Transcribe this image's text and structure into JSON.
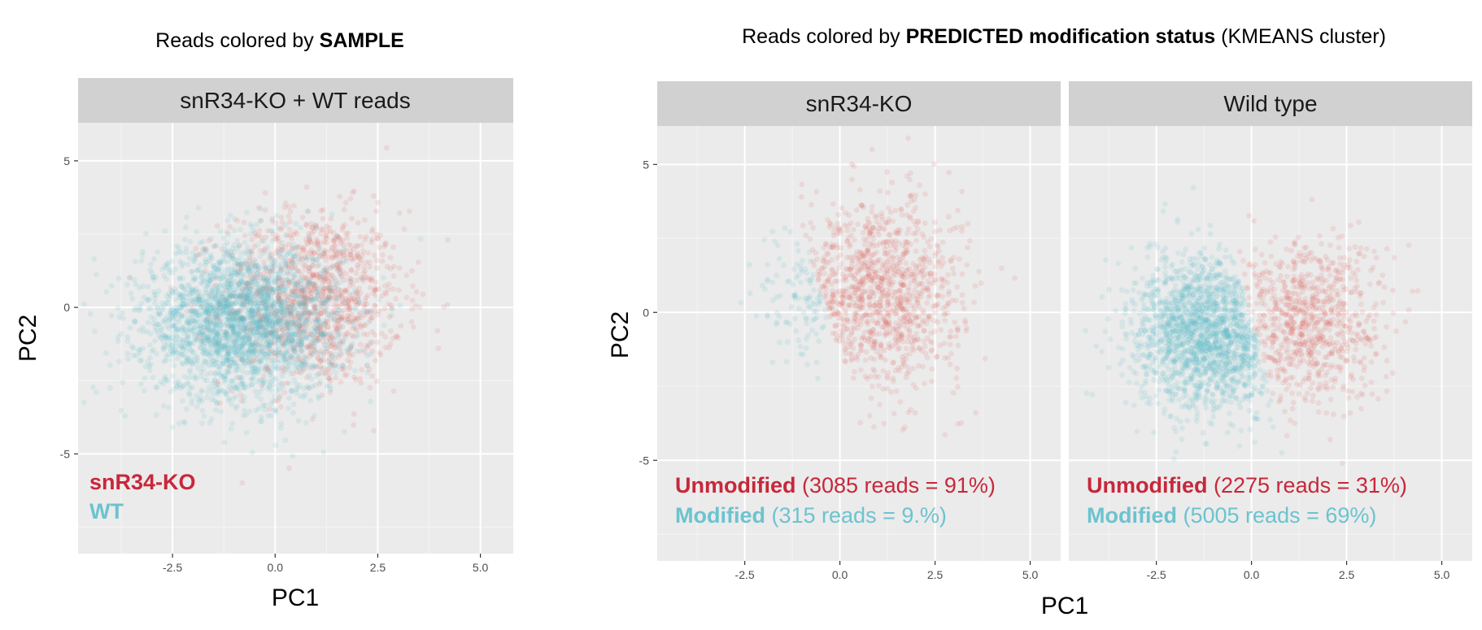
{
  "colors": {
    "unmodified": "#e06c63",
    "modified": "#5fbfc9",
    "label_red": "#c8273a",
    "label_teal": "#6cc3cf",
    "panel_bg": "#ebebeb",
    "strip_bg": "#d1d1d1"
  },
  "left_plot": {
    "title_prefix": "Reads colored by ",
    "title_bold": "SAMPLE",
    "strip": "snR34-KO + WT reads",
    "xlabel": "PC1",
    "ylabel": "PC2",
    "legend": [
      {
        "label": "snR34-KO",
        "color_key": "label_red"
      },
      {
        "label": "WT",
        "color_key": "label_teal"
      }
    ]
  },
  "right_plot": {
    "title_prefix": "Reads colored by ",
    "title_bold": "PREDICTED modification status",
    "title_suffix": " (KMEANS cluster)",
    "xlabel": "PC1",
    "ylabel": "PC2",
    "facets": [
      {
        "strip": "snR34-KO",
        "unmod_label": "Unmodified",
        "unmod_detail": " (3085 reads = 91%)",
        "mod_label": "Modified",
        "mod_detail": " (315 reads = 9.%)"
      },
      {
        "strip": "Wild type",
        "unmod_label": "Unmodified",
        "unmod_detail": " (2275 reads = 31%)",
        "mod_label": "Modified",
        "mod_detail": " (5005 reads = 69%)"
      }
    ]
  },
  "chart_data": [
    {
      "type": "scatter",
      "title": "Reads colored by SAMPLE",
      "facet": "snR34-KO + WT reads",
      "xlabel": "PC1",
      "ylabel": "PC2",
      "xlim": [
        -4.8,
        5.8
      ],
      "ylim": [
        -8.4,
        6.3
      ],
      "x_ticks": [
        -2.5,
        0.0,
        2.5,
        5.0
      ],
      "x_tick_labels": [
        "-2.5",
        "0.0",
        "2.5",
        "5.0"
      ],
      "y_ticks": [
        -5,
        0,
        5
      ],
      "y_tick_labels": [
        "-5",
        "0",
        "5"
      ],
      "grid": true,
      "legend_placement": "bottom-left",
      "series": [
        {
          "name": "snR34-KO",
          "n_points": 3400,
          "center": [
            0.9,
            0.3
          ],
          "sd": [
            1.1,
            1.5
          ],
          "color_key": "unmodified",
          "alpha": 0.15
        },
        {
          "name": "WT",
          "n_points": 7280,
          "center": [
            -0.8,
            -0.5
          ],
          "sd": [
            1.2,
            1.3
          ],
          "color_key": "modified",
          "alpha": 0.15
        }
      ]
    },
    {
      "type": "scatter",
      "title": "Reads colored by PREDICTED modification status (KMEANS cluster)",
      "facet": "snR34-KO",
      "xlabel": "PC1",
      "ylabel": "PC2",
      "xlim": [
        -4.8,
        5.8
      ],
      "ylim": [
        -8.4,
        6.3
      ],
      "x_ticks": [
        -2.5,
        0.0,
        2.5,
        5.0
      ],
      "x_tick_labels": [
        "-2.5",
        "0.0",
        "2.5",
        "5.0"
      ],
      "y_ticks": [
        -5,
        0,
        5
      ],
      "y_tick_labels": [
        "-5",
        "0",
        "5"
      ],
      "grid": true,
      "series": [
        {
          "name": "Unmodified",
          "n_points": 3085,
          "percent": 91,
          "center": [
            1.0,
            0.6
          ],
          "sd": [
            1.1,
            1.6
          ],
          "color_key": "unmodified",
          "alpha": 0.15
        },
        {
          "name": "Modified",
          "n_points": 315,
          "percent": 9,
          "center": [
            -0.9,
            0.6
          ],
          "sd": [
            0.6,
            1.2
          ],
          "color_key": "modified",
          "alpha": 0.15
        }
      ]
    },
    {
      "type": "scatter",
      "title": "Reads colored by PREDICTED modification status (KMEANS cluster)",
      "facet": "Wild type",
      "xlabel": "PC1",
      "ylabel": "PC2",
      "xlim": [
        -4.8,
        5.8
      ],
      "ylim": [
        -8.4,
        6.3
      ],
      "x_ticks": [
        -2.5,
        0.0,
        2.5,
        5.0
      ],
      "x_tick_labels": [
        "-2.5",
        "0.0",
        "2.5",
        "5.0"
      ],
      "y_ticks": [
        -5,
        0,
        5
      ],
      "y_tick_labels": [
        "-5",
        "0",
        "5"
      ],
      "grid": true,
      "series": [
        {
          "name": "Unmodified",
          "n_points": 2275,
          "percent": 31,
          "center": [
            1.4,
            -0.3
          ],
          "sd": [
            1.0,
            1.4
          ],
          "color_key": "unmodified",
          "alpha": 0.15
        },
        {
          "name": "Modified",
          "n_points": 5005,
          "percent": 69,
          "center": [
            -1.1,
            -0.7
          ],
          "sd": [
            1.0,
            1.3
          ],
          "color_key": "modified",
          "alpha": 0.15
        }
      ]
    }
  ]
}
